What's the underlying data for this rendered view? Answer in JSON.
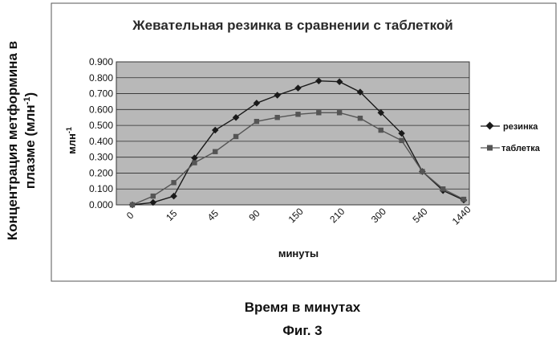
{
  "chart_data": {
    "type": "line",
    "title": "Жевательная резинка в сравнении с таблеткой",
    "ylabel": "млн",
    "ylabel_sup": "-1",
    "xlabel": "минуты",
    "outer_ylabel_line1": "Концентрация метформина в",
    "outer_ylabel_line2": "плазме (млн",
    "outer_ylabel_sup": "-1",
    "outer_ylabel_end": ")",
    "outer_xlabel": "Время в минутах",
    "caption": "Фиг. 3",
    "ylim": [
      0,
      0.9
    ],
    "yticks": [
      "0.000",
      "0.100",
      "0.200",
      "0.300",
      "0.400",
      "0.500",
      "0.600",
      "0.700",
      "0.800",
      "0.900"
    ],
    "x": [
      "0",
      "",
      "15",
      "",
      "45",
      "",
      "90",
      "",
      "150",
      "",
      "210",
      "",
      "300",
      "",
      "540",
      "",
      "1440"
    ],
    "series": [
      {
        "name": "резинка",
        "color": "#1a1a1a",
        "marker": "diamond",
        "values": [
          0.0,
          0.015,
          0.055,
          0.295,
          0.47,
          0.55,
          0.64,
          0.69,
          0.735,
          0.78,
          0.775,
          0.71,
          0.58,
          0.45,
          0.21,
          0.09,
          0.03
        ]
      },
      {
        "name": "таблетка",
        "color": "#555555",
        "marker": "square",
        "values": [
          0.0,
          0.055,
          0.14,
          0.265,
          0.335,
          0.43,
          0.525,
          0.55,
          0.57,
          0.58,
          0.58,
          0.545,
          0.47,
          0.405,
          0.21,
          0.1,
          0.035
        ]
      }
    ],
    "grid": true,
    "legend": "right",
    "plot_background": "#b8b8b8",
    "grid_color": "#2b2b2b"
  }
}
